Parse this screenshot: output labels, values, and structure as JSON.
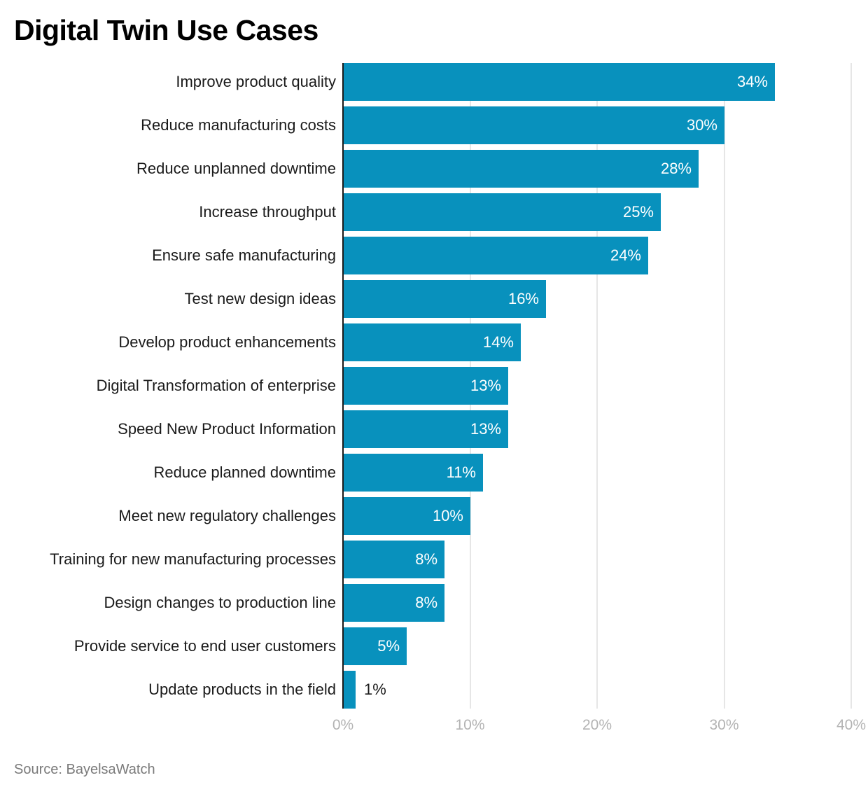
{
  "title": "Digital Twin Use Cases",
  "source": "Source: BayelsaWatch",
  "colors": {
    "bar": "#0891bd",
    "axis": "#1a1a1a",
    "grid": "#e6e6e6",
    "tick": "#b3b3b3"
  },
  "chart_data": {
    "type": "bar",
    "orientation": "horizontal",
    "title": "Digital Twin Use Cases",
    "xlabel": "",
    "ylabel": "",
    "xlim": [
      0,
      40
    ],
    "grid": true,
    "legend": null,
    "categories": [
      "Improve product quality",
      "Reduce manufacturing costs",
      "Reduce unplanned downtime",
      "Increase throughput",
      "Ensure safe manufacturing",
      "Test new design ideas",
      "Develop product enhancements",
      "Digital Transformation of enterprise",
      "Speed New Product Information",
      "Reduce planned downtime",
      "Meet new regulatory challenges",
      "Training for new manufacturing processes",
      "Design changes to production line",
      "Provide service to end user customers",
      "Update products in the field"
    ],
    "values": [
      34,
      30,
      28,
      25,
      24,
      16,
      14,
      13,
      13,
      11,
      10,
      8,
      8,
      5,
      1
    ],
    "value_labels": [
      "34%",
      "30%",
      "28%",
      "25%",
      "24%",
      "16%",
      "14%",
      "13%",
      "13%",
      "11%",
      "10%",
      "8%",
      "8%",
      "5%",
      "1%"
    ],
    "x_ticks": [
      "0%",
      "10%",
      "20%",
      "30%",
      "40%"
    ],
    "source": "Source: BayelsaWatch"
  }
}
